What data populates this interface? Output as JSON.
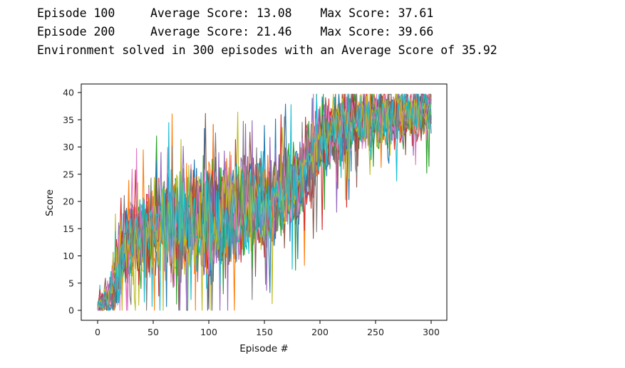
{
  "log": {
    "lines": [
      "Episode 100     Average Score: 13.08    Max Score: 37.61",
      "Episode 200     Average Score: 21.46    Max Score: 39.66",
      "Environment solved in 300 episodes with an Average Score of 35.92"
    ]
  },
  "chart_data": {
    "type": "line",
    "xlabel": "Episode #",
    "ylabel": "Score",
    "xlim": [
      0,
      300
    ],
    "ylim": [
      0,
      40
    ],
    "xticks": [
      0,
      50,
      100,
      150,
      200,
      250,
      300
    ],
    "yticks": [
      0,
      5,
      10,
      15,
      20,
      25,
      30,
      35,
      40
    ],
    "grid": false,
    "legend": "none",
    "num_series": 20,
    "colors": [
      "#1f77b4",
      "#ff7f0e",
      "#2ca02c",
      "#d62728",
      "#9467bd",
      "#8c564b",
      "#e377c2",
      "#7f7f7f",
      "#bcbd22",
      "#17becf"
    ],
    "mean_score_checkpoints": [
      {
        "episode": 0,
        "score": 0.8
      },
      {
        "episode": 10,
        "score": 2.5
      },
      {
        "episode": 20,
        "score": 9
      },
      {
        "episode": 30,
        "score": 13
      },
      {
        "episode": 50,
        "score": 15
      },
      {
        "episode": 100,
        "score": 17
      },
      {
        "episode": 150,
        "score": 20
      },
      {
        "episode": 180,
        "score": 23
      },
      {
        "episode": 200,
        "score": 31
      },
      {
        "episode": 220,
        "score": 34
      },
      {
        "episode": 250,
        "score": 35
      },
      {
        "episode": 275,
        "score": 36
      },
      {
        "episode": 300,
        "score": 37
      }
    ],
    "score_spread_checkpoints": [
      {
        "episode": 0,
        "spread": 0.8
      },
      {
        "episode": 20,
        "spread": 6
      },
      {
        "episode": 100,
        "spread": 9
      },
      {
        "episode": 200,
        "spread": 6
      },
      {
        "episode": 300,
        "spread": 4
      }
    ]
  }
}
